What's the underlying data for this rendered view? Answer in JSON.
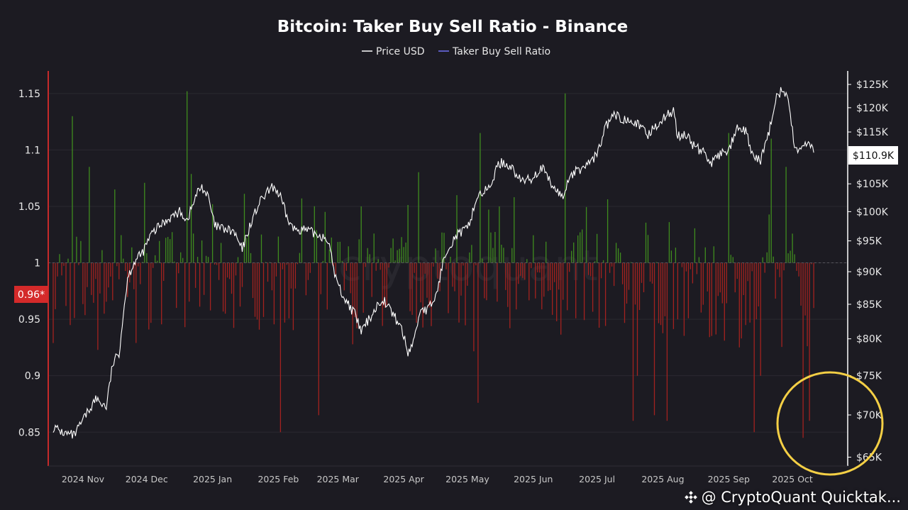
{
  "chart_data": {
    "type": "line+bar",
    "title": "Bitcoin: Taker Buy Sell Ratio - Binance",
    "legend": [
      {
        "name": "Price USD",
        "color": "#ffffff"
      },
      {
        "name": "Taker Buy Sell Ratio",
        "color": "#5b5bbf"
      }
    ],
    "left_axis": {
      "min": 0.82,
      "max": 1.17,
      "ticks": [
        "1.15",
        "1.1",
        "1.05",
        "1",
        "0.95",
        "0.9",
        "0.85"
      ],
      "tick_values": [
        1.15,
        1.1,
        1.05,
        1.0,
        0.95,
        0.9,
        0.85
      ]
    },
    "right_axis": {
      "scale": "log",
      "min": 64000,
      "max": 128000,
      "ticks": [
        "$125K",
        "$120K",
        "$115K",
        "$110K",
        "$105K",
        "$100K",
        "$95K",
        "$90K",
        "$85K",
        "$80K",
        "$75K",
        "$70K",
        "$65K"
      ],
      "tick_values": [
        125000,
        120000,
        115000,
        110000,
        105000,
        100000,
        95000,
        90000,
        85000,
        80000,
        75000,
        70000,
        65000
      ]
    },
    "x_axis": {
      "labels": [
        "2024 Nov",
        "2024 Dec",
        "2025 Jan",
        "2025 Feb",
        "2025 Mar",
        "2025 Apr",
        "2025 May",
        "2025 Jun",
        "2025 Jul",
        "2025 Aug",
        "2025 Sep",
        "2025 Oct"
      ],
      "label_days": [
        14,
        44,
        75,
        106,
        134,
        165,
        195,
        226,
        256,
        287,
        318,
        348
      ],
      "total_days": 370
    },
    "baseline": 1.0,
    "current_ratio_label": "0.96*",
    "current_price_label": "$110.9K",
    "annotation": "highlight circle around recent lowest ratio readings (Oct 2025)",
    "price_keypoints": [
      [
        0,
        68500
      ],
      [
        5,
        67800
      ],
      [
        10,
        67500
      ],
      [
        15,
        69800
      ],
      [
        20,
        72000
      ],
      [
        25,
        71000
      ],
      [
        28,
        76500
      ],
      [
        31,
        78000
      ],
      [
        35,
        89000
      ],
      [
        38,
        91500
      ],
      [
        42,
        93000
      ],
      [
        46,
        96000
      ],
      [
        50,
        97500
      ],
      [
        55,
        99000
      ],
      [
        60,
        100000
      ],
      [
        63,
        98500
      ],
      [
        68,
        103500
      ],
      [
        70,
        104500
      ],
      [
        73,
        102500
      ],
      [
        76,
        97500
      ],
      [
        80,
        97000
      ],
      [
        85,
        96500
      ],
      [
        89,
        93500
      ],
      [
        93,
        98000
      ],
      [
        97,
        101500
      ],
      [
        101,
        103500
      ],
      [
        104,
        104500
      ],
      [
        107,
        102500
      ],
      [
        110,
        99000
      ],
      [
        113,
        97000
      ],
      [
        117,
        97000
      ],
      [
        121,
        96500
      ],
      [
        125,
        96000
      ],
      [
        129,
        95500
      ],
      [
        133,
        89000
      ],
      [
        136,
        86500
      ],
      [
        139,
        85000
      ],
      [
        142,
        83500
      ],
      [
        145,
        81000
      ],
      [
        149,
        83000
      ],
      [
        152,
        84500
      ],
      [
        155,
        86000
      ],
      [
        158,
        84500
      ],
      [
        161,
        83000
      ],
      [
        164,
        81500
      ],
      [
        167,
        78000
      ],
      [
        170,
        80000
      ],
      [
        173,
        84500
      ],
      [
        176,
        84000
      ],
      [
        180,
        86000
      ],
      [
        185,
        93500
      ],
      [
        190,
        96000
      ],
      [
        195,
        97000
      ],
      [
        200,
        103000
      ],
      [
        205,
        104000
      ],
      [
        210,
        109000
      ],
      [
        215,
        108500
      ],
      [
        220,
        105500
      ],
      [
        225,
        106000
      ],
      [
        230,
        108000
      ],
      [
        235,
        104500
      ],
      [
        240,
        102500
      ],
      [
        243,
        106500
      ],
      [
        247,
        107500
      ],
      [
        251,
        108500
      ],
      [
        256,
        110500
      ],
      [
        260,
        116000
      ],
      [
        264,
        118500
      ],
      [
        268,
        117500
      ],
      [
        272,
        118000
      ],
      [
        276,
        116000
      ],
      [
        280,
        114500
      ],
      [
        284,
        116500
      ],
      [
        288,
        118000
      ],
      [
        292,
        119500
      ],
      [
        294,
        114000
      ],
      [
        298,
        114500
      ],
      [
        302,
        112000
      ],
      [
        306,
        111000
      ],
      [
        310,
        109000
      ],
      [
        314,
        110500
      ],
      [
        318,
        111500
      ],
      [
        322,
        115500
      ],
      [
        326,
        115000
      ],
      [
        330,
        109500
      ],
      [
        333,
        109500
      ],
      [
        337,
        115000
      ],
      [
        340,
        122000
      ],
      [
        343,
        123800
      ],
      [
        346,
        121500
      ],
      [
        349,
        112000
      ],
      [
        352,
        111500
      ],
      [
        355,
        113000
      ],
      [
        358,
        110900
      ]
    ]
  },
  "footer": {
    "brand": "@ CryptoQuant Quicktak..."
  },
  "watermark": "cryptoquant"
}
